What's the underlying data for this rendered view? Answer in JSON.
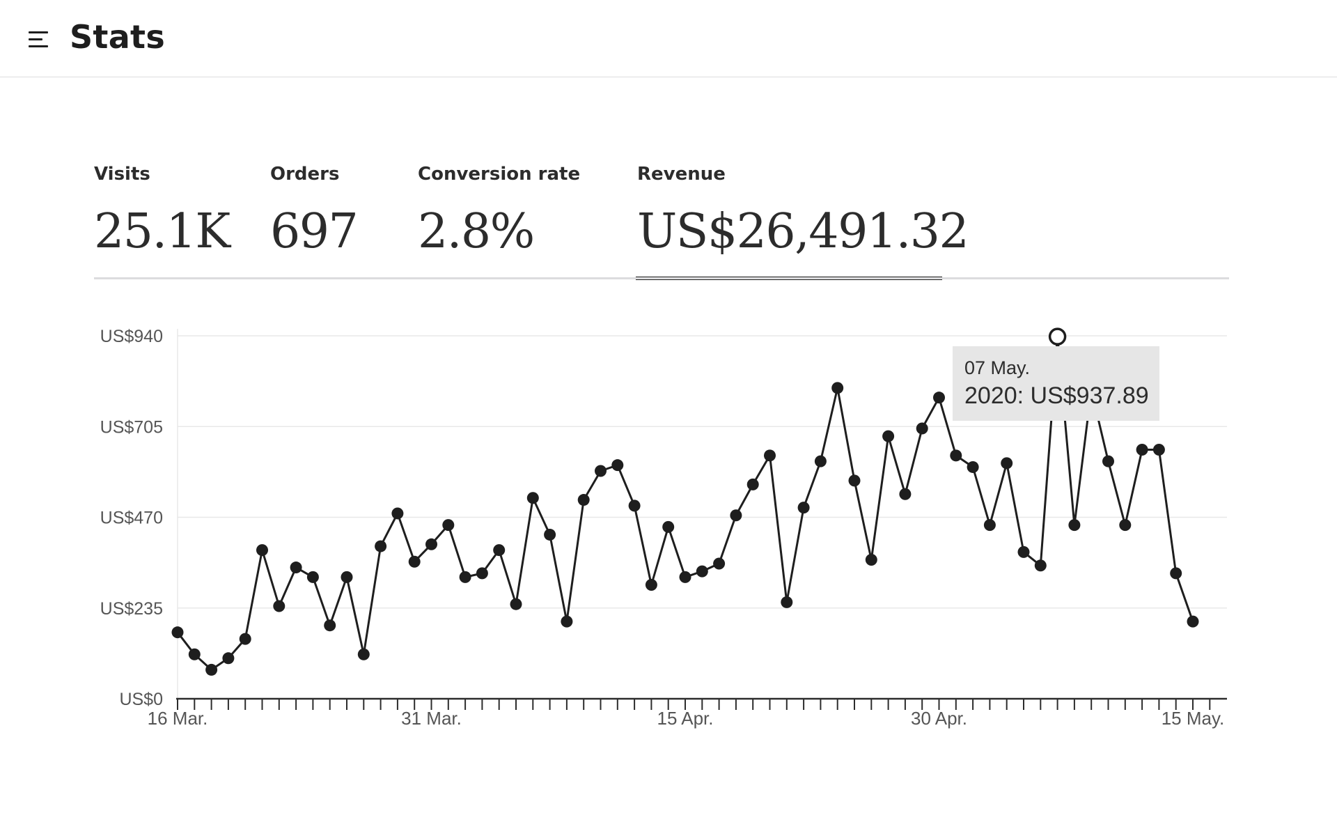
{
  "header": {
    "title": "Stats",
    "menu_icon": "hamburger-menu-icon"
  },
  "summary_tabs": [
    {
      "label": "Visits",
      "value": "25.1K"
    },
    {
      "label": "Orders",
      "value": "697"
    },
    {
      "label": "Conversion rate",
      "value": "2.8%"
    },
    {
      "label": "Revenue",
      "value": "US$26,491.32"
    }
  ],
  "tooltip": {
    "date": "07 May.",
    "value": "2020: US$937.89"
  },
  "colors": {
    "line": "#1e1e1e",
    "grid": "#e8e8e8",
    "axis": "#2c2c2c",
    "tick_text": "#555555",
    "tooltip_bg": "#e6e6e6"
  },
  "chart_data": {
    "type": "line",
    "x": [
      "2020-03-16",
      "2020-03-17",
      "2020-03-18",
      "2020-03-19",
      "2020-03-20",
      "2020-03-21",
      "2020-03-22",
      "2020-03-23",
      "2020-03-24",
      "2020-03-25",
      "2020-03-26",
      "2020-03-27",
      "2020-03-28",
      "2020-03-29",
      "2020-03-30",
      "2020-03-31",
      "2020-04-01",
      "2020-04-02",
      "2020-04-03",
      "2020-04-04",
      "2020-04-05",
      "2020-04-06",
      "2020-04-07",
      "2020-04-08",
      "2020-04-09",
      "2020-04-10",
      "2020-04-11",
      "2020-04-12",
      "2020-04-13",
      "2020-04-14",
      "2020-04-15",
      "2020-04-16",
      "2020-04-17",
      "2020-04-18",
      "2020-04-19",
      "2020-04-20",
      "2020-04-21",
      "2020-04-22",
      "2020-04-23",
      "2020-04-24",
      "2020-04-25",
      "2020-04-26",
      "2020-04-27",
      "2020-04-28",
      "2020-04-29",
      "2020-04-30",
      "2020-05-01",
      "2020-05-02",
      "2020-05-03",
      "2020-05-04",
      "2020-05-05",
      "2020-05-06",
      "2020-05-07",
      "2020-05-08",
      "2020-05-09",
      "2020-05-10",
      "2020-05-11",
      "2020-05-12",
      "2020-05-13",
      "2020-05-14",
      "2020-05-15",
      "2020-05-16"
    ],
    "values": [
      172,
      115,
      75,
      105,
      155,
      385,
      240,
      340,
      315,
      190,
      315,
      115,
      395,
      480,
      355,
      400,
      450,
      315,
      325,
      385,
      245,
      520,
      425,
      200,
      515,
      590,
      605,
      500,
      295,
      445,
      315,
      330,
      350,
      475,
      555,
      630,
      250,
      495,
      615,
      805,
      565,
      360,
      680,
      530,
      700,
      780,
      630,
      600,
      450,
      610,
      380,
      345,
      937.89,
      450,
      800,
      615,
      450,
      645,
      645,
      325,
      200,
      null
    ],
    "x_tick_labels": [
      {
        "x": "2020-03-16",
        "label": "16 Mar."
      },
      {
        "x": "2020-03-31",
        "label": "31 Mar."
      },
      {
        "x": "2020-04-15",
        "label": "15 Apr."
      },
      {
        "x": "2020-04-30",
        "label": "30 Apr."
      },
      {
        "x": "2020-05-15",
        "label": "15 May."
      }
    ],
    "y_ticks": [
      0,
      235,
      470,
      705,
      940
    ],
    "y_tick_labels": [
      "US$0",
      "US$235",
      "US$470",
      "US$705",
      "US$940"
    ],
    "ylim": [
      0,
      940
    ],
    "grid": true,
    "highlighted_point": {
      "x": "2020-05-07",
      "y": 937.89
    }
  }
}
